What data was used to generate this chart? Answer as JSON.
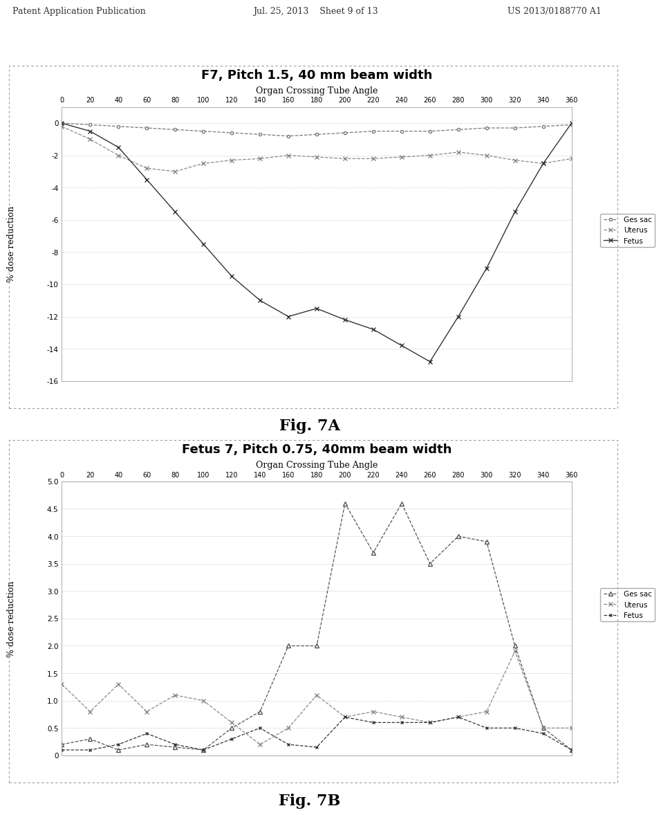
{
  "fig7a": {
    "title": "F7, Pitch 1.5, 40 mm beam width",
    "xlabel": "Organ Crossing Tube Angle",
    "ylabel": "% dose reduction",
    "ylim": [
      -16,
      1
    ],
    "yticks": [
      0,
      -2,
      -4,
      -6,
      -8,
      -10,
      -12,
      -14,
      -16
    ],
    "xticks": [
      0,
      20,
      40,
      60,
      80,
      100,
      120,
      140,
      160,
      180,
      200,
      220,
      240,
      260,
      280,
      300,
      320,
      340,
      360
    ],
    "ges_sac": [
      0,
      -0.1,
      -0.2,
      -0.3,
      -0.4,
      -0.5,
      -0.6,
      -0.7,
      -0.8,
      -0.7,
      -0.6,
      -0.5,
      -0.5,
      -0.5,
      -0.4,
      -0.3,
      -0.3,
      -0.2,
      -0.1
    ],
    "uterus": [
      -0.2,
      -1.0,
      -2.0,
      -2.8,
      -3.0,
      -2.5,
      -2.3,
      -2.2,
      -2.0,
      -2.1,
      -2.2,
      -2.2,
      -2.1,
      -2.0,
      -1.8,
      -2.0,
      -2.3,
      -2.5,
      -2.2
    ],
    "fetus": [
      0,
      -0.5,
      -1.5,
      -3.5,
      -5.5,
      -7.5,
      -9.5,
      -11.0,
      -12.0,
      -11.5,
      -12.2,
      -12.8,
      -13.8,
      -14.8,
      -12.0,
      -9.0,
      -5.5,
      -2.5,
      0
    ],
    "fig_label": "Fig. 7A"
  },
  "fig7b": {
    "title": "Fetus 7, Pitch 0.75, 40mm beam width",
    "xlabel": "Organ Crossing Tube Angle",
    "ylabel": "% dose reduction",
    "ylim": [
      0,
      5
    ],
    "yticks": [
      0,
      0.5,
      1.0,
      1.5,
      2.0,
      2.5,
      3.0,
      3.5,
      4.0,
      4.5,
      5.0
    ],
    "xticks": [
      0,
      20,
      40,
      60,
      80,
      100,
      120,
      140,
      160,
      180,
      200,
      220,
      240,
      260,
      280,
      300,
      320,
      340,
      360
    ],
    "ges_sac": [
      0.2,
      0.3,
      0.1,
      0.2,
      0.15,
      0.1,
      0.5,
      0.8,
      2.0,
      2.0,
      4.6,
      3.7,
      4.6,
      3.5,
      4.0,
      3.9,
      2.0,
      0.5,
      0.1
    ],
    "uterus": [
      1.3,
      0.8,
      1.3,
      0.8,
      1.1,
      1.0,
      0.6,
      0.2,
      0.5,
      1.1,
      0.7,
      0.8,
      0.7,
      0.6,
      0.7,
      0.8,
      1.9,
      0.5,
      0.5
    ],
    "fetus": [
      0.1,
      0.1,
      0.2,
      0.4,
      0.2,
      0.1,
      0.3,
      0.5,
      0.2,
      0.15,
      0.7,
      0.6,
      0.6,
      0.6,
      0.7,
      0.5,
      0.5,
      0.4,
      0.1
    ],
    "fig_label": "Fig. 7B"
  },
  "legend_labels": [
    "Ges sac",
    "Uterus",
    "Fetus"
  ],
  "line_colors": [
    "#555555",
    "#888888",
    "#333333"
  ],
  "line_styles": [
    "--",
    "--",
    "-"
  ],
  "markers": [
    "o",
    "x",
    "x"
  ],
  "background_color": "#ffffff",
  "border_color": "#888888",
  "grid_color": "#aaaaaa",
  "title_fontsize": 13,
  "label_fontsize": 9,
  "tick_fontsize": 8,
  "fig_label_fontsize": 16
}
